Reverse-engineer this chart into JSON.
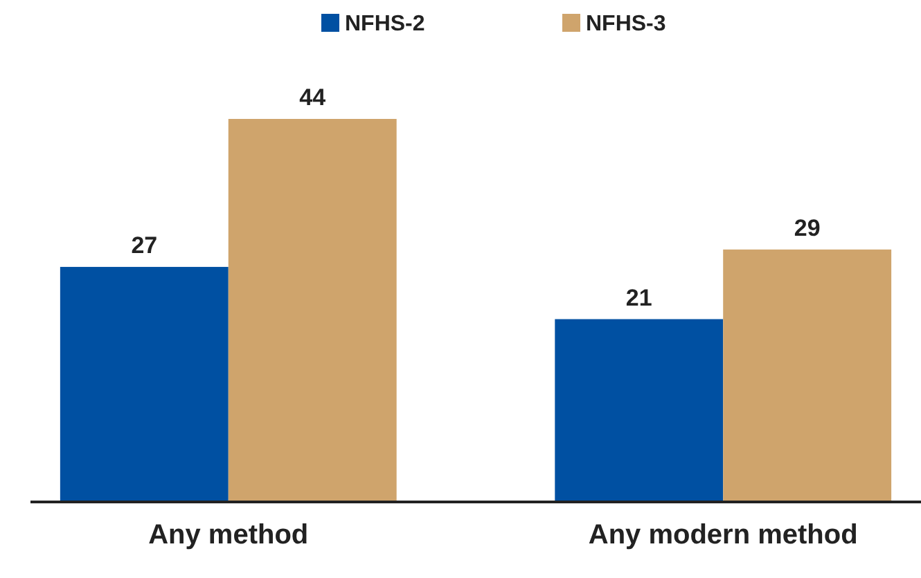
{
  "chart_data": {
    "type": "bar",
    "categories": [
      "Any method",
      "Any modern method"
    ],
    "series": [
      {
        "name": "NFHS-2",
        "color": "#0050a2",
        "values": [
          27,
          21
        ]
      },
      {
        "name": "NFHS-3",
        "color": "#cfa46c",
        "values": [
          44,
          29
        ]
      }
    ],
    "data_labels": true,
    "legend": "top"
  }
}
